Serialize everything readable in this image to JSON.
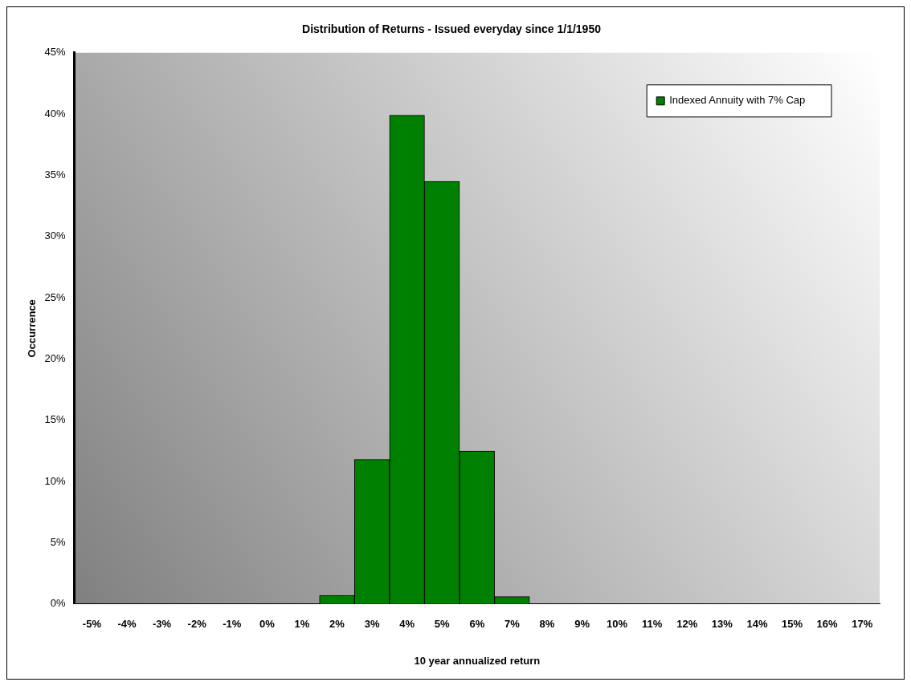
{
  "chart_data": {
    "type": "bar",
    "title": "Distribution of Returns - Issued everyday since 1/1/1950",
    "xlabel": "10 year annualized return",
    "ylabel": "Occurrence",
    "categories": [
      "-5%",
      "-4%",
      "-3%",
      "-2%",
      "-1%",
      "0%",
      "1%",
      "2%",
      "3%",
      "4%",
      "5%",
      "6%",
      "7%",
      "8%",
      "9%",
      "10%",
      "11%",
      "12%",
      "13%",
      "14%",
      "15%",
      "16%",
      "17%"
    ],
    "series": [
      {
        "name": "Indexed Annuity with 7% Cap",
        "color": "#008000",
        "values": [
          0,
          0,
          0,
          0,
          0,
          0,
          0,
          0.7,
          11.8,
          39.9,
          34.5,
          12.5,
          0.6,
          0,
          0,
          0,
          0,
          0,
          0,
          0,
          0,
          0,
          0
        ]
      }
    ],
    "ylim": [
      0,
      45
    ],
    "yticks": [
      {
        "value": 0,
        "label": "0%"
      },
      {
        "value": 5,
        "label": "5%"
      },
      {
        "value": 10,
        "label": "10%"
      },
      {
        "value": 15,
        "label": "15%"
      },
      {
        "value": 20,
        "label": "20%"
      },
      {
        "value": 25,
        "label": "25%"
      },
      {
        "value": 30,
        "label": "30%"
      },
      {
        "value": 35,
        "label": "35%"
      },
      {
        "value": 40,
        "label": "40%"
      },
      {
        "value": 45,
        "label": "45%"
      }
    ],
    "grid": false,
    "legend": "top right"
  }
}
